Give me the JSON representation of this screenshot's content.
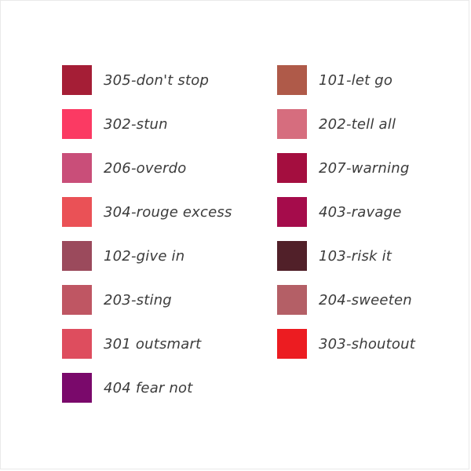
{
  "page": {
    "background_color": "#ffffff",
    "border_color": "#e9e9e9",
    "label_text_color": "#3b3b3b"
  },
  "shade_picker": {
    "columns": [
      {
        "items": [
          {
            "code": "305",
            "label": "305-don't stop",
            "color": "#A51E36"
          },
          {
            "code": "302",
            "label": "302-stun",
            "color": "#FB3A63"
          },
          {
            "code": "206",
            "label": "206-overdo",
            "color": "#C94E79"
          },
          {
            "code": "304",
            "label": "304-rouge excess",
            "color": "#EA5156"
          },
          {
            "code": "102",
            "label": "102-give in",
            "color": "#9B4A5C"
          },
          {
            "code": "203",
            "label": "203-sting",
            "color": "#BF5663"
          },
          {
            "code": "301",
            "label": "301 outsmart",
            "color": "#DE4D5E"
          },
          {
            "code": "404",
            "label": "404 fear not",
            "color": "#7A096B"
          }
        ]
      },
      {
        "items": [
          {
            "code": "101",
            "label": "101-let go",
            "color": "#AF5A49"
          },
          {
            "code": "202",
            "label": "202-tell all",
            "color": "#D66D7E"
          },
          {
            "code": "207",
            "label": "207-warning",
            "color": "#A40E3F"
          },
          {
            "code": "403",
            "label": "403-ravage",
            "color": "#A50C4B"
          },
          {
            "code": "103",
            "label": "103-risk it",
            "color": "#512029"
          },
          {
            "code": "204",
            "label": "204-sweeten",
            "color": "#B45F66"
          },
          {
            "code": "303",
            "label": "303-shoutout",
            "color": "#EC1C21"
          }
        ]
      }
    ]
  }
}
